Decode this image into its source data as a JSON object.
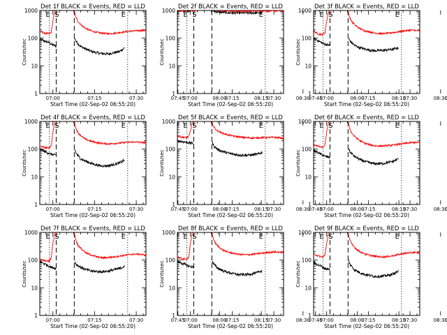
{
  "figure": {
    "ylabel": "Counts/sec",
    "xlabel": "Start Time (02-Sep-02 06:55:20)",
    "x_ticks": [
      "07:00",
      "07:15",
      "07:30",
      "07:45",
      "08:00",
      "08:15",
      "08:30"
    ],
    "y_ticks": [
      "1",
      "10",
      "100",
      "1000"
    ],
    "marker_labels": {
      "e1": "E",
      "s": "S",
      "e2": "E"
    },
    "colors": {
      "events": "#000000",
      "lld": "#ff0000"
    }
  },
  "chart_data": [
    {
      "type": "line",
      "title": "Det 1f BLACK = Events, RED = LLD",
      "x_unit": "minutes after 07:00",
      "xlim": [
        -4.7,
        33.5
      ],
      "ylim": [
        1,
        1000
      ],
      "y_scale": "log",
      "markers": {
        "e1_dotted": -1.3,
        "s_dashed": 1.2,
        "dashed2": 7.7,
        "dotted2": 26.9
      },
      "series": [
        {
          "name": "Events",
          "x": [
            -4.7,
            -1.5,
            -0.5,
            0.5,
            1.2
          ],
          "y": [
            90,
            70,
            60,
            55,
            50
          ]
        },
        {
          "name": "Events",
          "x": [
            7.8,
            8.4,
            10,
            12,
            14,
            17,
            20,
            22,
            24,
            25.8
          ],
          "y": [
            100,
            75,
            50,
            40,
            33,
            28,
            27,
            30,
            33,
            45
          ]
        },
        {
          "name": "LLD",
          "x": [
            -4.7,
            -3,
            -1.5,
            -0.6,
            0,
            0.7,
            1.2
          ],
          "y": [
            180,
            150,
            145,
            160,
            400,
            1000,
            1000
          ]
        },
        {
          "name": "LLD",
          "x": [
            7.7,
            8.2,
            9,
            10.5,
            12,
            14,
            16,
            18,
            20,
            22,
            24,
            26,
            28,
            30,
            32,
            33.5
          ],
          "y": [
            1000,
            600,
            400,
            280,
            220,
            180,
            160,
            150,
            145,
            150,
            160,
            170,
            180,
            185,
            190,
            190
          ]
        }
      ]
    },
    {
      "type": "line",
      "title": "Det 2f BLACK = Events, RED = LLD",
      "x_unit": "minutes after 07:00",
      "xlim": [
        -4.7,
        33.5
      ],
      "ylim": [
        1,
        1000
      ],
      "y_scale": "log",
      "markers": {
        "e1_dotted": -1.3,
        "s_dashed": 1.2,
        "dashed2": 7.7,
        "dotted2": 26.9
      },
      "series": [
        {
          "name": "Events",
          "x": [
            -4.7,
            -2.5,
            -1,
            0,
            1
          ],
          "y": [
            1000,
            1000,
            980,
            1000,
            1000
          ]
        },
        {
          "name": "Events",
          "x": [
            8,
            9,
            11,
            14,
            17,
            20,
            23,
            25.8
          ],
          "y": [
            1000,
            920,
            860,
            830,
            820,
            820,
            820,
            830
          ]
        },
        {
          "name": "LLD",
          "x": [
            -4.7,
            -3.5,
            -2.5,
            -1.8,
            -0.8,
            0,
            1,
            2
          ],
          "y": [
            1000,
            1000,
            960,
            1000,
            1000,
            1050,
            1000,
            1000
          ]
        },
        {
          "name": "LLD",
          "x": [
            7.7,
            8.5,
            10,
            12,
            14,
            16,
            18,
            20,
            22,
            24,
            26,
            28,
            30,
            32,
            33.5
          ],
          "y": [
            1400,
            1150,
            1050,
            1000,
            980,
            950,
            950,
            960,
            960,
            970,
            980,
            960,
            970,
            980,
            970
          ]
        }
      ]
    },
    {
      "type": "line",
      "title": "Det 3f BLACK = Events, RED = LLD",
      "x_unit": "minutes after 07:00",
      "xlim": [
        -4.7,
        33.5
      ],
      "ylim": [
        1,
        1000
      ],
      "y_scale": "log",
      "markers": {
        "e1_dotted": -1.3,
        "s_dashed": 1.2,
        "dashed2": 7.7,
        "dotted2": 26.9
      },
      "series": [
        {
          "name": "Events",
          "x": [
            -4.7,
            -2,
            -0.5,
            1.2
          ],
          "y": [
            100,
            70,
            60,
            55
          ]
        },
        {
          "name": "Events",
          "x": [
            7.8,
            8.4,
            10,
            12,
            14,
            17,
            20,
            22,
            24,
            25.8
          ],
          "y": [
            100,
            80,
            55,
            45,
            40,
            35,
            36,
            38,
            40,
            45
          ]
        },
        {
          "name": "LLD",
          "x": [
            -4.7,
            -3,
            -1.5,
            -0.6,
            0,
            0.7,
            1.2
          ],
          "y": [
            180,
            140,
            135,
            160,
            400,
            1000,
            1000
          ]
        },
        {
          "name": "LLD",
          "x": [
            7.7,
            8.2,
            9,
            10.5,
            12,
            14,
            16,
            18,
            20,
            22,
            24,
            26,
            28,
            30,
            32,
            33.5
          ],
          "y": [
            1000,
            600,
            400,
            280,
            220,
            180,
            165,
            150,
            145,
            150,
            160,
            170,
            185,
            195,
            190,
            180
          ]
        }
      ]
    },
    {
      "type": "line",
      "title": "Det 4f BLACK = Events, RED = LLD",
      "x_unit": "minutes after 07:00",
      "xlim": [
        -4.7,
        33.5
      ],
      "ylim": [
        1,
        1000
      ],
      "y_scale": "log",
      "markers": {
        "e1_dotted": -1.3,
        "s_dashed": 1.2,
        "dashed2": 7.7,
        "dotted2": 26.9
      },
      "series": [
        {
          "name": "Events",
          "x": [
            -4.7,
            -2,
            -0.5,
            1.2
          ],
          "y": [
            100,
            75,
            65,
            60
          ]
        },
        {
          "name": "Events",
          "x": [
            7.8,
            8.4,
            10,
            12,
            14,
            17,
            20,
            22,
            24,
            25.8
          ],
          "y": [
            100,
            70,
            45,
            36,
            30,
            25,
            25,
            28,
            32,
            40
          ]
        },
        {
          "name": "LLD",
          "x": [
            -4.7,
            -3,
            -1.5,
            -0.6,
            0,
            0.7,
            1.2
          ],
          "y": [
            130,
            115,
            110,
            130,
            400,
            1000,
            1000
          ]
        },
        {
          "name": "LLD",
          "x": [
            7.7,
            8.2,
            9,
            10.5,
            12,
            14,
            16,
            18,
            20,
            22,
            24,
            26,
            28,
            30,
            32,
            33.5
          ],
          "y": [
            1000,
            600,
            400,
            280,
            220,
            190,
            170,
            160,
            155,
            160,
            165,
            175,
            180,
            180,
            175,
            170
          ]
        }
      ]
    },
    {
      "type": "line",
      "title": "Det 5f BLACK = Events, RED = LLD",
      "x_unit": "minutes after 07:00",
      "xlim": [
        -4.7,
        33.5
      ],
      "ylim": [
        1,
        1000
      ],
      "y_scale": "log",
      "markers": {
        "e1_dotted": -1.3,
        "s_dashed": 1.2,
        "dashed2": 7.7,
        "dotted2": 26.9
      },
      "series": [
        {
          "name": "Events",
          "x": [
            -4.7,
            -2,
            -0.5,
            1.2
          ],
          "y": [
            200,
            180,
            170,
            160
          ]
        },
        {
          "name": "Events",
          "x": [
            7.8,
            8.4,
            10,
            12,
            14,
            17,
            20,
            22,
            24,
            25.8
          ],
          "y": [
            180,
            130,
            95,
            80,
            70,
            62,
            60,
            62,
            65,
            75
          ]
        },
        {
          "name": "LLD",
          "x": [
            -4.7,
            -3,
            -1.5,
            -0.6,
            0,
            0.7,
            1.2
          ],
          "y": [
            300,
            270,
            260,
            280,
            450,
            1000,
            1000
          ]
        },
        {
          "name": "LLD",
          "x": [
            7.7,
            8.2,
            9,
            10.5,
            12,
            14,
            16,
            18,
            20,
            22,
            24,
            26,
            28,
            30,
            32,
            33.5
          ],
          "y": [
            1000,
            700,
            520,
            420,
            360,
            320,
            290,
            270,
            260,
            255,
            255,
            260,
            265,
            265,
            260,
            240
          ]
        }
      ]
    },
    {
      "type": "line",
      "title": "Det 6f BLACK = Events, RED = LLD",
      "x_unit": "minutes after 07:00",
      "xlim": [
        -4.7,
        33.5
      ],
      "ylim": [
        1,
        1000
      ],
      "y_scale": "log",
      "markers": {
        "e1_dotted": -1.3,
        "s_dashed": 1.2,
        "dashed2": 7.7,
        "dotted2": 26.9
      },
      "series": [
        {
          "name": "Events",
          "x": [
            -4.7,
            -2,
            -0.5,
            1.2
          ],
          "y": [
            90,
            65,
            55,
            50
          ]
        },
        {
          "name": "Events",
          "x": [
            7.8,
            8.4,
            10,
            12,
            14,
            17,
            20,
            22,
            24,
            25.8
          ],
          "y": [
            110,
            80,
            55,
            42,
            35,
            30,
            30,
            33,
            36,
            45
          ]
        },
        {
          "name": "LLD",
          "x": [
            -4.7,
            -3,
            -1.5,
            -0.6,
            0,
            0.7,
            1.2
          ],
          "y": [
            150,
            125,
            115,
            140,
            400,
            1000,
            1000
          ]
        },
        {
          "name": "LLD",
          "x": [
            7.7,
            8.2,
            9,
            10.5,
            12,
            14,
            16,
            18,
            20,
            22,
            24,
            26,
            28,
            30,
            32,
            33.5
          ],
          "y": [
            1000,
            600,
            380,
            260,
            200,
            160,
            140,
            130,
            130,
            135,
            140,
            150,
            160,
            170,
            175,
            170
          ]
        }
      ]
    },
    {
      "type": "line",
      "title": "Det 7f BLACK = Events, RED = LLD",
      "x_unit": "minutes after 07:00",
      "xlim": [
        -4.7,
        33.5
      ],
      "ylim": [
        1,
        1000
      ],
      "y_scale": "log",
      "markers": {
        "e1_dotted": -1.3,
        "s_dashed": 1.2,
        "dashed2": 7.7,
        "dotted2": 26.9
      },
      "series": [
        {
          "name": "Events",
          "x": [
            -4.7,
            -2,
            -0.5,
            1.2
          ],
          "y": [
            90,
            65,
            55,
            50
          ]
        },
        {
          "name": "Events",
          "x": [
            7.8,
            8.4,
            10,
            12,
            14,
            17,
            20,
            22,
            24,
            25.8
          ],
          "y": [
            90,
            70,
            55,
            45,
            40,
            38,
            40,
            45,
            50,
            60
          ]
        },
        {
          "name": "LLD",
          "x": [
            -4.7,
            -3,
            -1.5,
            -0.6,
            0,
            0.7,
            1.2
          ],
          "y": [
            110,
            95,
            90,
            120,
            400,
            1000,
            1000
          ]
        },
        {
          "name": "LLD",
          "x": [
            7.7,
            8.2,
            9,
            10.5,
            12,
            14,
            16,
            18,
            20,
            22,
            24,
            26,
            28,
            30,
            32,
            33.5
          ],
          "y": [
            1000,
            550,
            350,
            240,
            180,
            150,
            130,
            120,
            125,
            130,
            140,
            150,
            160,
            165,
            160,
            150
          ]
        }
      ]
    },
    {
      "type": "line",
      "title": "Det 8f BLACK = Events, RED = LLD",
      "x_unit": "minutes after 07:00",
      "xlim": [
        -4.7,
        33.5
      ],
      "ylim": [
        1,
        1000
      ],
      "y_scale": "log",
      "markers": {
        "e1_dotted": -1.3,
        "s_dashed": 1.2,
        "dashed2": 7.7,
        "dotted2": 26.9
      },
      "series": [
        {
          "name": "Events",
          "x": [
            -4.7,
            -2,
            -0.5,
            1.2
          ],
          "y": [
            90,
            70,
            60,
            55
          ]
        },
        {
          "name": "Events",
          "x": [
            7.8,
            8.4,
            10,
            12,
            14,
            17,
            20,
            22,
            24,
            25.8
          ],
          "y": [
            90,
            70,
            50,
            40,
            35,
            30,
            30,
            32,
            35,
            42
          ]
        },
        {
          "name": "LLD",
          "x": [
            -4.7,
            -3,
            -1.5,
            -0.6,
            0,
            0.7,
            1.2
          ],
          "y": [
            130,
            110,
            105,
            130,
            400,
            1000,
            1000
          ]
        },
        {
          "name": "LLD",
          "x": [
            7.7,
            8.2,
            9,
            10.5,
            12,
            14,
            16,
            18,
            20,
            22,
            24,
            26,
            28,
            30,
            32,
            33.5
          ],
          "y": [
            1000,
            600,
            400,
            280,
            220,
            190,
            170,
            160,
            155,
            160,
            170,
            180,
            190,
            195,
            195,
            185
          ]
        }
      ]
    },
    {
      "type": "line",
      "title": "Det 9f BLACK = Events, RED = LLD",
      "x_unit": "minutes after 07:00",
      "xlim": [
        -4.7,
        33.5
      ],
      "ylim": [
        1,
        1000
      ],
      "y_scale": "log",
      "markers": {
        "e1_dotted": -1.3,
        "s_dashed": 1.2,
        "dashed2": 7.7,
        "dotted2": 26.9
      },
      "series": [
        {
          "name": "Events",
          "x": [
            -4.7,
            -2,
            -0.5,
            1.2
          ],
          "y": [
            80,
            60,
            50,
            45
          ]
        },
        {
          "name": "Events",
          "x": [
            7.8,
            8.4,
            10,
            12,
            14,
            17,
            20,
            22,
            24,
            25.8
          ],
          "y": [
            100,
            70,
            45,
            35,
            30,
            26,
            26,
            28,
            32,
            40
          ]
        },
        {
          "name": "LLD",
          "x": [
            -4.7,
            -3,
            -1.5,
            -0.6,
            0,
            0.7,
            1.2
          ],
          "y": [
            170,
            140,
            130,
            150,
            400,
            1000,
            1000
          ]
        },
        {
          "name": "LLD",
          "x": [
            7.7,
            8.2,
            9,
            10.5,
            12,
            14,
            16,
            18,
            20,
            22,
            24,
            26,
            28,
            30,
            32,
            33.5
          ],
          "y": [
            1000,
            600,
            380,
            260,
            200,
            165,
            145,
            135,
            130,
            135,
            145,
            160,
            175,
            185,
            190,
            180
          ]
        }
      ]
    }
  ]
}
